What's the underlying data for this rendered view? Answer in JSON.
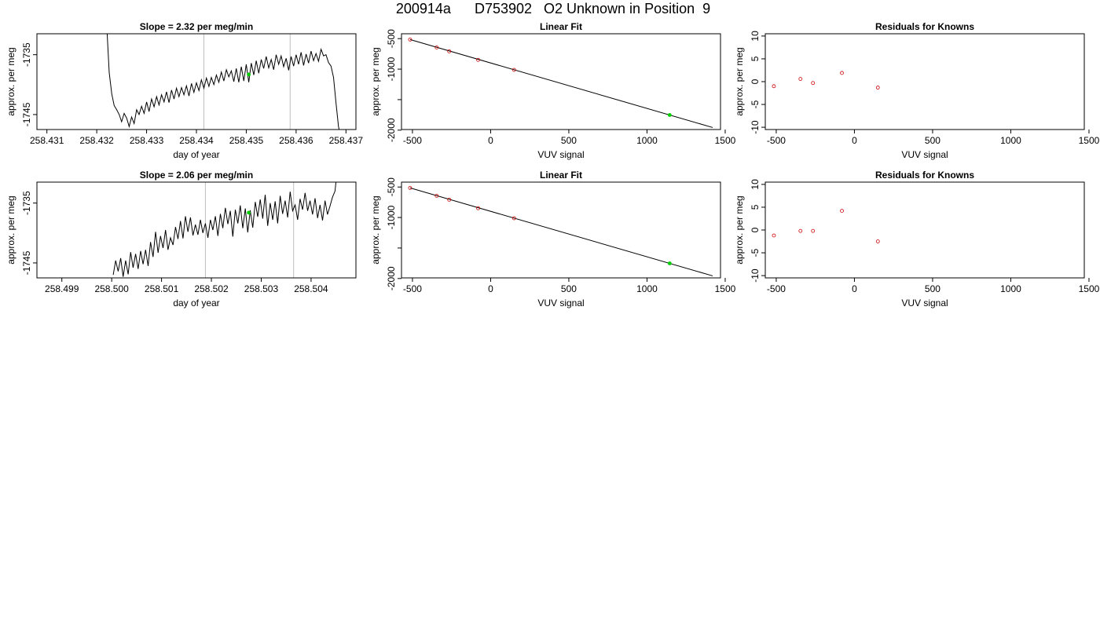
{
  "title": "200914a      D753902   O2 Unknown in Position  9",
  "chart_data": [
    {
      "type": "line",
      "title": "Slope =  2.32  per meg/min",
      "xlabel": "day of year",
      "ylabel": "approx. per meg",
      "xlim": [
        258.4308,
        258.4372
      ],
      "ylim": [
        -1747.5,
        -1731.5
      ],
      "xticks": [
        "258.431",
        "258.432",
        "258.433",
        "258.434",
        "258.435",
        "258.436",
        "258.437"
      ],
      "yticks": [
        "-1735",
        "-1745"
      ],
      "vlines": [
        258.43415,
        258.43588
      ],
      "line_color": "#000000",
      "vline_color": "#bebebe",
      "series": [
        {
          "x": [
            258.4322,
            258.43225,
            258.4323,
            258.43235,
            258.4324,
            258.43245,
            258.4325,
            258.43255,
            258.4326,
            258.43265,
            258.4327,
            258.43275,
            258.4328,
            258.43285,
            258.4329,
            258.43295,
            258.433,
            258.43305,
            258.4331,
            258.43315,
            258.4332,
            258.43325,
            258.4333,
            258.43335,
            258.4334,
            258.43345,
            258.4335,
            258.43355,
            258.4336,
            258.43365,
            258.4337,
            258.43375,
            258.4338,
            258.43385,
            258.4339,
            258.43395,
            258.434,
            258.43405,
            258.4341,
            258.43415,
            258.4342,
            258.43425,
            258.4343,
            258.43435,
            258.4344,
            258.43445,
            258.4345,
            258.43455,
            258.4346,
            258.43465,
            258.4347,
            258.43475,
            258.4348,
            258.43485,
            258.4349,
            258.43495,
            258.435,
            258.43505,
            258.4351,
            258.43515,
            258.4352,
            258.43525,
            258.4353,
            258.43535,
            258.4354,
            258.43545,
            258.4355,
            258.43555,
            258.4356,
            258.43565,
            258.4357,
            258.43575,
            258.4358,
            258.43585,
            258.4359,
            258.43595,
            258.436,
            258.43605,
            258.4361,
            258.43615,
            258.4362,
            258.43625,
            258.4363,
            258.43635,
            258.4364,
            258.43645,
            258.4365,
            258.43655,
            258.4366,
            258.43665,
            258.4367,
            258.43675,
            258.4368,
            258.43685,
            258.4369
          ],
          "y": [
            -1730.0,
            -1738.0,
            -1741.5,
            -1743.5,
            -1744.2,
            -1745.0,
            -1746.2,
            -1744.8,
            -1745.6,
            -1747.0,
            -1745.4,
            -1746.5,
            -1744.2,
            -1745.0,
            -1743.6,
            -1744.8,
            -1742.9,
            -1744.5,
            -1742.4,
            -1743.7,
            -1742.0,
            -1743.4,
            -1741.7,
            -1742.9,
            -1741.2,
            -1743.0,
            -1740.9,
            -1742.4,
            -1740.6,
            -1742.0,
            -1740.5,
            -1741.7,
            -1740.2,
            -1741.9,
            -1739.8,
            -1741.3,
            -1739.7,
            -1741.0,
            -1739.2,
            -1740.6,
            -1738.9,
            -1740.3,
            -1738.8,
            -1740.0,
            -1738.4,
            -1739.6,
            -1737.9,
            -1739.4,
            -1737.5,
            -1738.7,
            -1737.7,
            -1739.5,
            -1737.3,
            -1739.6,
            -1737.0,
            -1739.4,
            -1736.6,
            -1739.6,
            -1736.4,
            -1738.4,
            -1736.0,
            -1738.1,
            -1735.8,
            -1737.3,
            -1735.3,
            -1737.2,
            -1735.8,
            -1737.5,
            -1735.0,
            -1736.6,
            -1735.2,
            -1737.0,
            -1735.6,
            -1737.6,
            -1735.3,
            -1736.9,
            -1735.0,
            -1736.6,
            -1734.6,
            -1736.8,
            -1734.9,
            -1736.4,
            -1734.4,
            -1736.0,
            -1734.8,
            -1736.1,
            -1734.1,
            -1735.2,
            -1735.0,
            -1736.3,
            -1736.9,
            -1738.8,
            -1743.0,
            -1747.0,
            -1749.0
          ]
        }
      ],
      "marker": {
        "x": 258.43505,
        "y": -1738.3,
        "color": "#00cc00"
      }
    },
    {
      "type": "scatter",
      "title": "Linear Fit",
      "xlabel": "VUV signal",
      "ylabel": "approx. per meg",
      "xlim": [
        -570,
        1470
      ],
      "ylim": [
        -1990,
        -420
      ],
      "xticks": [
        -500,
        0,
        500,
        1000,
        1500
      ],
      "yticks": [
        -500,
        -1000,
        -1500,
        -2000
      ],
      "ytick_labels": [
        "-500",
        "-1000",
        "",
        "-2000"
      ],
      "fit_line": {
        "x": [
          -515,
          1420
        ],
        "y": [
          -515,
          -1957
        ]
      },
      "points": {
        "x": [
          -515,
          -345,
          -265,
          -80,
          150
        ],
        "y": [
          -515,
          -645,
          -708,
          -848,
          -1012
        ],
        "color": "#cc0000"
      },
      "marker": {
        "x": 1145,
        "y": -1752,
        "color": "#00cc00"
      }
    },
    {
      "type": "scatter",
      "title": "Residuals for Knowns",
      "xlabel": "VUV signal",
      "ylabel": "approx. per meg",
      "xlim": [
        -570,
        1470
      ],
      "ylim": [
        -10.5,
        10.5
      ],
      "xticks": [
        -500,
        0,
        500,
        1000,
        1500
      ],
      "yticks": [
        10,
        5,
        0,
        -5,
        -10
      ],
      "points": {
        "x": [
          -515,
          -345,
          -265,
          -80,
          150
        ],
        "y": [
          -1.0,
          0.6,
          -0.3,
          1.9,
          -1.3
        ],
        "color": "#cc0000"
      }
    },
    {
      "type": "line",
      "title": "Slope =  2.06  per meg/min",
      "xlabel": "day of year",
      "ylabel": "approx. per meg",
      "xlim": [
        258.4985,
        258.5049
      ],
      "ylim": [
        -1747.5,
        -1731.5
      ],
      "xticks": [
        "258.499",
        "258.500",
        "258.501",
        "258.502",
        "258.503",
        "258.504"
      ],
      "yticks": [
        "-1735",
        "-1745"
      ],
      "vlines": [
        258.50188,
        258.50365
      ],
      "line_color": "#000000",
      "vline_color": "#bebebe",
      "series": [
        {
          "x": [
            258.50003,
            258.50008,
            258.50013,
            258.50018,
            258.50023,
            258.50028,
            258.50033,
            258.50038,
            258.50043,
            258.50048,
            258.50053,
            258.50058,
            258.50063,
            258.50068,
            258.50073,
            258.50078,
            258.50083,
            258.50088,
            258.50093,
            258.50098,
            258.50103,
            258.50108,
            258.50113,
            258.50118,
            258.50123,
            258.50128,
            258.50133,
            258.50138,
            258.50143,
            258.50148,
            258.50153,
            258.50158,
            258.50163,
            258.50168,
            258.50173,
            258.50178,
            258.50183,
            258.50188,
            258.50193,
            258.50198,
            258.50203,
            258.50208,
            258.50213,
            258.50218,
            258.50223,
            258.50228,
            258.50233,
            258.50238,
            258.50243,
            258.50248,
            258.50253,
            258.50258,
            258.50263,
            258.50268,
            258.50273,
            258.50278,
            258.50283,
            258.50288,
            258.50293,
            258.50298,
            258.50303,
            258.50308,
            258.50313,
            258.50318,
            258.50323,
            258.50328,
            258.50333,
            258.50338,
            258.50343,
            258.50348,
            258.50353,
            258.50358,
            258.50363,
            258.50368,
            258.50373,
            258.50378,
            258.50383,
            258.50388,
            258.50393,
            258.50398,
            258.50403,
            258.50408,
            258.50413,
            258.50418,
            258.50423,
            258.50428,
            258.50433,
            258.50438,
            258.50443,
            258.50448,
            258.50453
          ],
          "y": [
            -1747.0,
            -1744.6,
            -1746.4,
            -1744.2,
            -1747.3,
            -1744.6,
            -1746.9,
            -1743.2,
            -1745.8,
            -1743.5,
            -1746.0,
            -1743.0,
            -1745.2,
            -1742.8,
            -1745.5,
            -1741.5,
            -1744.0,
            -1739.8,
            -1743.3,
            -1740.5,
            -1742.5,
            -1739.5,
            -1742.8,
            -1740.8,
            -1742.0,
            -1739.0,
            -1741.0,
            -1738.0,
            -1740.9,
            -1737.2,
            -1739.8,
            -1737.4,
            -1740.4,
            -1738.6,
            -1740.3,
            -1737.8,
            -1740.0,
            -1738.4,
            -1740.8,
            -1737.8,
            -1739.5,
            -1737.2,
            -1740.5,
            -1736.8,
            -1739.2,
            -1735.8,
            -1738.5,
            -1736.3,
            -1740.6,
            -1736.1,
            -1738.4,
            -1735.4,
            -1739.2,
            -1735.9,
            -1739.9,
            -1736.2,
            -1739.1,
            -1734.8,
            -1737.3,
            -1734.4,
            -1737.6,
            -1733.6,
            -1738.8,
            -1735.0,
            -1737.8,
            -1734.7,
            -1738.4,
            -1733.8,
            -1736.8,
            -1734.6,
            -1737.4,
            -1733.1,
            -1736.3,
            -1735.3,
            -1737.8,
            -1734.3,
            -1736.1,
            -1733.3,
            -1736.3,
            -1734.6,
            -1736.9,
            -1734.2,
            -1737.5,
            -1735.3,
            -1737.9,
            -1734.6,
            -1736.9,
            -1735.5,
            -1734.0,
            -1733.0,
            -1729.0
          ]
        }
      ],
      "marker": {
        "x": 258.50275,
        "y": -1736.6,
        "color": "#00cc00"
      }
    },
    {
      "type": "scatter",
      "title": "Linear Fit",
      "xlabel": "VUV signal",
      "ylabel": "approx. per meg",
      "xlim": [
        -570,
        1470
      ],
      "ylim": [
        -1990,
        -420
      ],
      "xticks": [
        -500,
        0,
        500,
        1000,
        1500
      ],
      "yticks": [
        -500,
        -1000,
        -1500,
        -2000
      ],
      "ytick_labels": [
        "-500",
        "-1000",
        "",
        "-2000"
      ],
      "fit_line": {
        "x": [
          -515,
          1420
        ],
        "y": [
          -515,
          -1957
        ]
      },
      "points": {
        "x": [
          -515,
          -345,
          -265,
          -80,
          150
        ],
        "y": [
          -515,
          -645,
          -708,
          -848,
          -1012
        ],
        "color": "#cc0000"
      },
      "marker": {
        "x": 1145,
        "y": -1752,
        "color": "#00cc00"
      }
    },
    {
      "type": "scatter",
      "title": "Residuals for Knowns",
      "xlabel": "VUV signal",
      "ylabel": "approx. per meg",
      "xlim": [
        -570,
        1470
      ],
      "ylim": [
        -10.5,
        10.5
      ],
      "xticks": [
        -500,
        0,
        500,
        1000,
        1500
      ],
      "yticks": [
        10,
        5,
        0,
        -5,
        -10
      ],
      "points": {
        "x": [
          -515,
          -345,
          -265,
          -80,
          150
        ],
        "y": [
          -1.2,
          -0.2,
          -0.2,
          4.2,
          -2.5
        ],
        "color": "#cc0000"
      }
    }
  ]
}
